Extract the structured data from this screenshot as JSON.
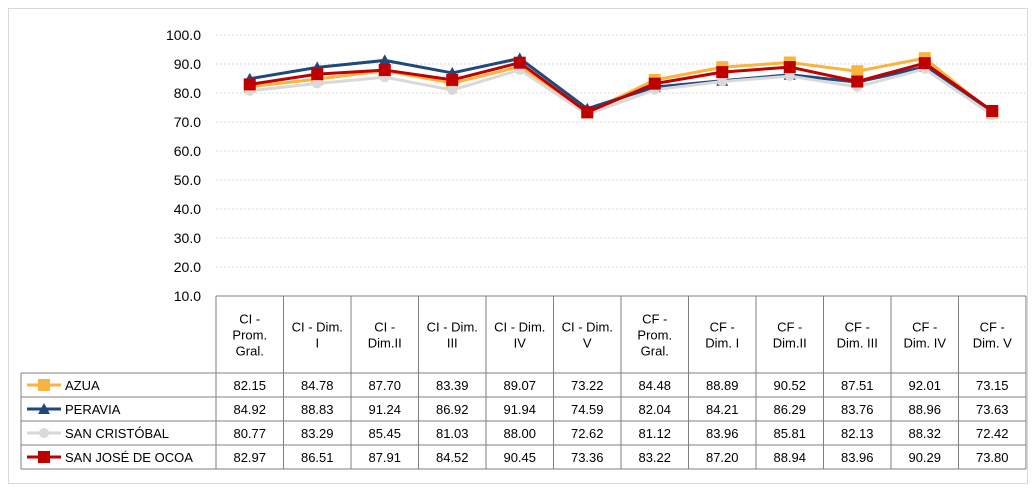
{
  "chart_data": {
    "type": "line",
    "categories": [
      [
        "CI -",
        "Prom.",
        "Gral."
      ],
      [
        "CI - Dim.",
        "I"
      ],
      [
        "CI -",
        "Dim.II"
      ],
      [
        "CI - Dim.",
        "III"
      ],
      [
        "CI - Dim.",
        "IV"
      ],
      [
        "CI - Dim.",
        "V"
      ],
      [
        "CF -",
        "Prom.",
        "Gral."
      ],
      [
        "CF -",
        "Dim. I"
      ],
      [
        "CF -",
        "Dim.II"
      ],
      [
        "CF -",
        "Dim. III"
      ],
      [
        "CF -",
        "Dim. IV"
      ],
      [
        "CF -",
        "Dim. V"
      ]
    ],
    "y_ticks": [
      "100.0",
      "90.0",
      "80.0",
      "70.0",
      "60.0",
      "50.0",
      "40.0",
      "30.0",
      "20.0",
      "10.0"
    ],
    "ylim": [
      10,
      100
    ],
    "grid": true,
    "legend": "data-table-rows",
    "series": [
      {
        "name": "AZUA",
        "color": "#F9B33F",
        "marker": "square",
        "values": [
          82.15,
          84.78,
          87.7,
          83.39,
          89.07,
          73.22,
          84.48,
          88.89,
          90.52,
          87.51,
          92.01,
          73.15
        ],
        "labels": [
          "82.15",
          "84.78",
          "87.70",
          "83.39",
          "89.07",
          "73.22",
          "84.48",
          "88.89",
          "90.52",
          "87.51",
          "92.01",
          "73.15"
        ]
      },
      {
        "name": "PERAVIA",
        "color": "#1F497D",
        "marker": "triangle",
        "values": [
          84.92,
          88.83,
          91.24,
          86.92,
          91.94,
          74.59,
          82.04,
          84.21,
          86.29,
          83.76,
          88.96,
          73.63
        ],
        "labels": [
          "84.92",
          "88.83",
          "91.24",
          "86.92",
          "91.94",
          "74.59",
          "82.04",
          "84.21",
          "86.29",
          "83.76",
          "88.96",
          "73.63"
        ]
      },
      {
        "name": "SAN CRISTÓBAL",
        "color": "#D9D9D9",
        "marker": "circle",
        "values": [
          80.77,
          83.29,
          85.45,
          81.03,
          88.0,
          72.62,
          81.12,
          83.96,
          85.81,
          82.13,
          88.32,
          72.42
        ],
        "labels": [
          "80.77",
          "83.29",
          "85.45",
          "81.03",
          "88.00",
          "72.62",
          "81.12",
          "83.96",
          "85.81",
          "82.13",
          "88.32",
          "72.42"
        ]
      },
      {
        "name": "SAN JOSÉ DE OCOA",
        "color": "#C00000",
        "marker": "square",
        "values": [
          82.97,
          86.51,
          87.91,
          84.52,
          90.45,
          73.36,
          83.22,
          87.2,
          88.94,
          83.96,
          90.29,
          73.8
        ],
        "labels": [
          "82.97",
          "86.51",
          "87.91",
          "84.52",
          "90.45",
          "73.36",
          "83.22",
          "87.20",
          "88.94",
          "83.96",
          "90.29",
          "73.80"
        ]
      }
    ]
  }
}
